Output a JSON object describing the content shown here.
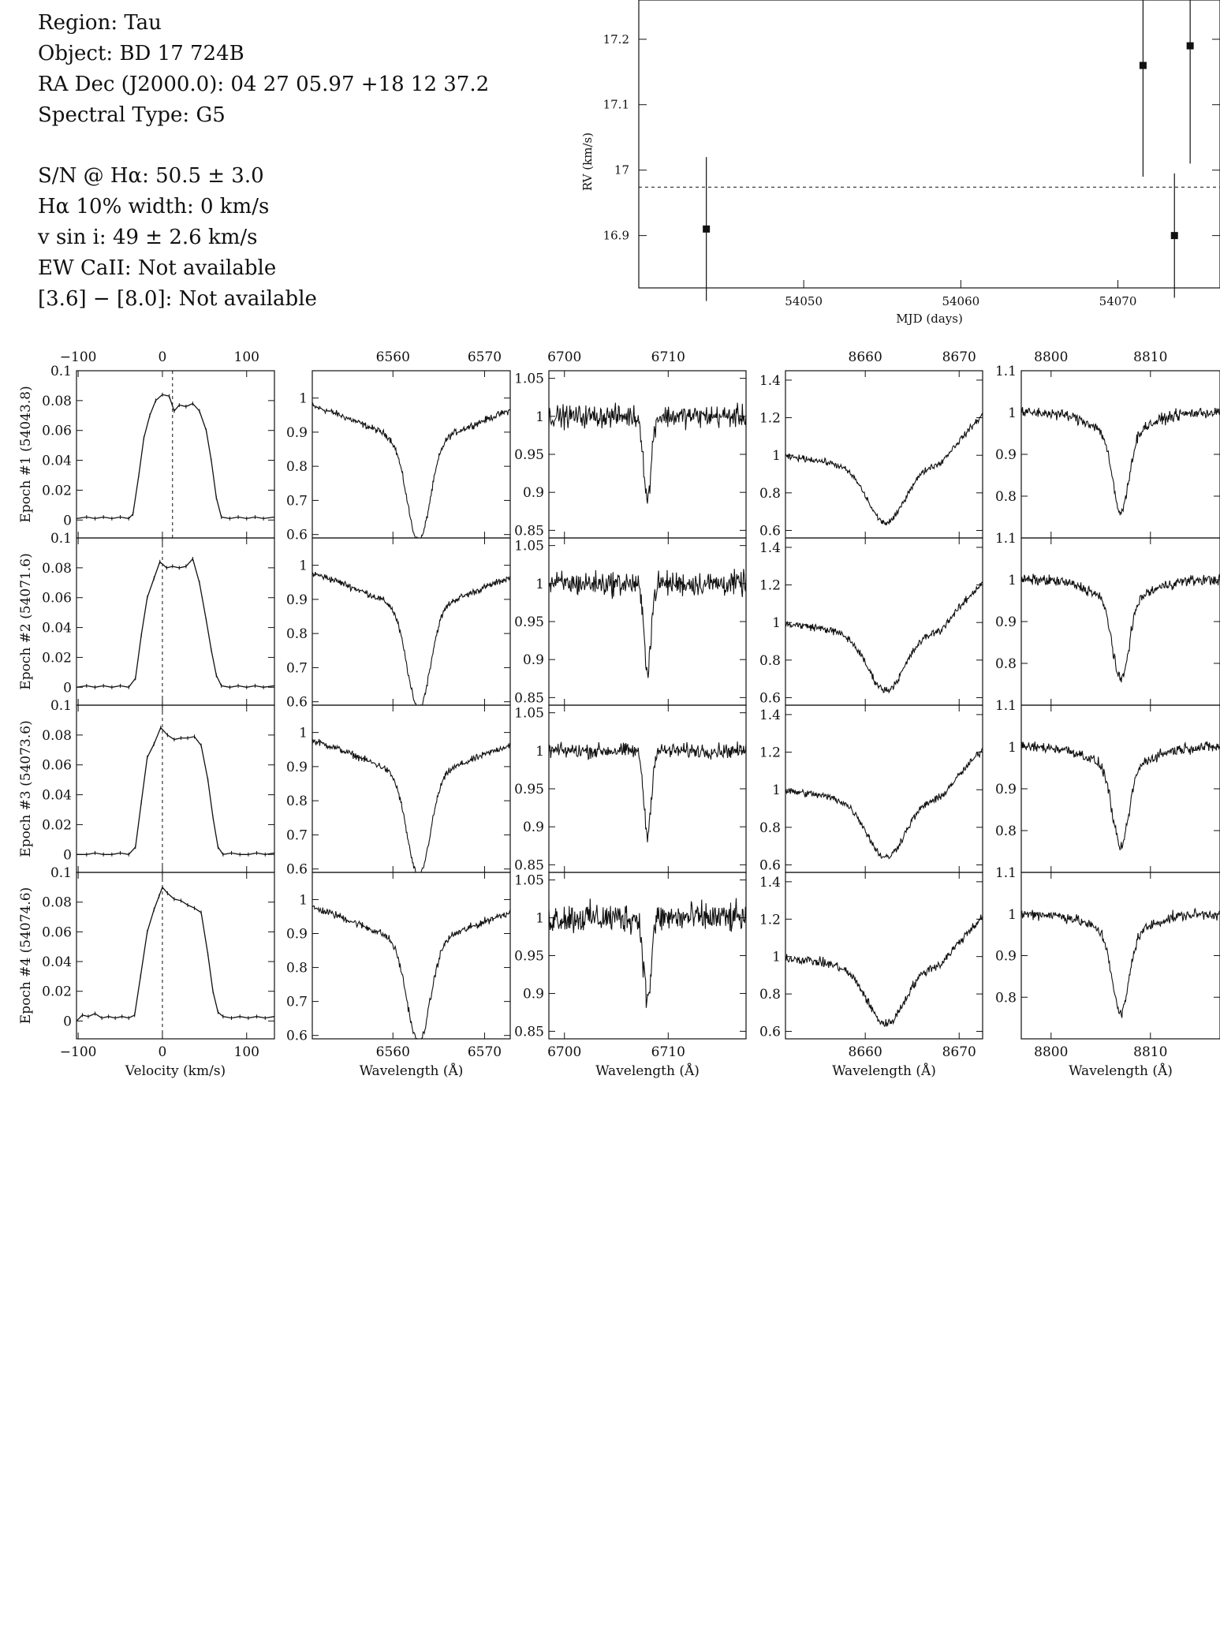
{
  "header": {
    "lines1": [
      "Region: Tau",
      "Object: BD 17 724B",
      "RA Dec (J2000.0): 04 27 05.97 +18 12 37.2",
      "Spectral Type: G5"
    ],
    "lines2": [
      "S/N @ Hα: 50.5 ± 3.0",
      "Hα 10% width: 0 km/s",
      "v sin i: 49 ± 2.6 km/s",
      "EW CaII: Not available",
      "[3.6] − [8.0]: Not available"
    ]
  },
  "chart_data": [
    {
      "type": "scatter",
      "title": "",
      "xlabel": "MJD (days)",
      "ylabel": "RV (km/s)",
      "xlim": [
        54039.5,
        54076.5
      ],
      "ylim": [
        16.82,
        17.26
      ],
      "xticks": [
        54050,
        54060,
        54070
      ],
      "yticks": [
        16.9,
        17,
        17.1,
        17.2
      ],
      "ytick_labels": [
        "16.9",
        "17",
        "17.1",
        "17.2"
      ],
      "mean_line": 16.974,
      "points": [
        {
          "x": 54043.8,
          "y": 16.91,
          "err": 0.11
        },
        {
          "x": 54071.6,
          "y": 17.16,
          "err": 0.17
        },
        {
          "x": 54073.6,
          "y": 16.9,
          "err": 0.095
        },
        {
          "x": 54074.6,
          "y": 17.19,
          "err": 0.18
        }
      ]
    },
    {
      "type": "line",
      "panel_grid": "4 epochs × 5 columns",
      "row_labels": [
        "Epoch #1 (54043.8)",
        "Epoch #2 (54071.6)",
        "Epoch #3 (54073.6)",
        "Epoch #4 (54074.6)"
      ],
      "epoch_rv": [
        16.91,
        17.16,
        16.9,
        17.19
      ],
      "columns": [
        {
          "id": "ccf",
          "xlabel": "Velocity (km/s)",
          "xlim": [
            -102,
            133
          ],
          "xticks": [
            -100,
            0,
            100
          ],
          "xtick_labels": [
            "−100",
            "0",
            "100"
          ],
          "ylims": [
            [
              -0.012,
              0.1
            ],
            [
              -0.012,
              0.1
            ],
            [
              -0.012,
              0.1
            ],
            [
              -0.012,
              0.1
            ]
          ],
          "yticks": [
            [
              0,
              0.02,
              0.04,
              0.06,
              0.08,
              0.1
            ],
            [
              0,
              0.02,
              0.04,
              0.06,
              0.08,
              0.1
            ],
            [
              0,
              0.02,
              0.04,
              0.06,
              0.08,
              0.1
            ],
            [
              0,
              0.02,
              0.04,
              0.06,
              0.08,
              0.1
            ]
          ],
          "dashed_x": [
            12,
            0,
            0,
            0
          ],
          "profiles": [
            [
              [
                -102,
                0.001
              ],
              [
                -90,
                0.002
              ],
              [
                -80,
                0.001
              ],
              [
                -70,
                0.002
              ],
              [
                -60,
                0.001
              ],
              [
                -50,
                0.002
              ],
              [
                -40,
                0.001
              ],
              [
                -35,
                0.004
              ],
              [
                -28,
                0.03
              ],
              [
                -22,
                0.055
              ],
              [
                -15,
                0.07
              ],
              [
                -8,
                0.08
              ],
              [
                0,
                0.084
              ],
              [
                8,
                0.083
              ],
              [
                14,
                0.073
              ],
              [
                20,
                0.077
              ],
              [
                28,
                0.076
              ],
              [
                36,
                0.078
              ],
              [
                44,
                0.073
              ],
              [
                52,
                0.06
              ],
              [
                58,
                0.04
              ],
              [
                64,
                0.015
              ],
              [
                70,
                0.002
              ],
              [
                80,
                0.001
              ],
              [
                90,
                0.002
              ],
              [
                100,
                0.001
              ],
              [
                110,
                0.002
              ],
              [
                120,
                0.001
              ],
              [
                133,
                0.002
              ]
            ],
            [
              [
                -102,
                0.0
              ],
              [
                -90,
                0.001
              ],
              [
                -80,
                0.0
              ],
              [
                -70,
                0.001
              ],
              [
                -60,
                0.0
              ],
              [
                -50,
                0.001
              ],
              [
                -40,
                0.0
              ],
              [
                -32,
                0.006
              ],
              [
                -25,
                0.035
              ],
              [
                -18,
                0.06
              ],
              [
                -10,
                0.073
              ],
              [
                -3,
                0.084
              ],
              [
                5,
                0.08
              ],
              [
                12,
                0.081
              ],
              [
                20,
                0.08
              ],
              [
                28,
                0.081
              ],
              [
                36,
                0.086
              ],
              [
                44,
                0.07
              ],
              [
                52,
                0.045
              ],
              [
                58,
                0.025
              ],
              [
                64,
                0.008
              ],
              [
                70,
                0.001
              ],
              [
                80,
                0.0
              ],
              [
                90,
                0.001
              ],
              [
                100,
                0.0
              ],
              [
                110,
                0.001
              ],
              [
                120,
                0.0
              ],
              [
                133,
                0.001
              ]
            ],
            [
              [
                -102,
                0.0
              ],
              [
                -90,
                0.0
              ],
              [
                -80,
                0.001
              ],
              [
                -70,
                0.0
              ],
              [
                -60,
                0.0
              ],
              [
                -50,
                0.001
              ],
              [
                -40,
                0.0
              ],
              [
                -32,
                0.005
              ],
              [
                -25,
                0.035
              ],
              [
                -18,
                0.065
              ],
              [
                -10,
                0.074
              ],
              [
                -2,
                0.085
              ],
              [
                6,
                0.08
              ],
              [
                14,
                0.077
              ],
              [
                22,
                0.078
              ],
              [
                30,
                0.078
              ],
              [
                38,
                0.079
              ],
              [
                46,
                0.073
              ],
              [
                54,
                0.05
              ],
              [
                60,
                0.025
              ],
              [
                66,
                0.005
              ],
              [
                72,
                0.0
              ],
              [
                82,
                0.001
              ],
              [
                92,
                0.0
              ],
              [
                102,
                0.0
              ],
              [
                112,
                0.001
              ],
              [
                122,
                0.0
              ],
              [
                133,
                0.001
              ]
            ],
            [
              [
                -102,
                0.0
              ],
              [
                -95,
                0.004
              ],
              [
                -88,
                0.003
              ],
              [
                -80,
                0.005
              ],
              [
                -72,
                0.002
              ],
              [
                -64,
                0.003
              ],
              [
                -56,
                0.002
              ],
              [
                -48,
                0.003
              ],
              [
                -40,
                0.002
              ],
              [
                -33,
                0.004
              ],
              [
                -26,
                0.03
              ],
              [
                -18,
                0.06
              ],
              [
                -10,
                0.075
              ],
              [
                -4,
                0.084
              ],
              [
                0,
                0.09
              ],
              [
                6,
                0.086
              ],
              [
                14,
                0.082
              ],
              [
                22,
                0.081
              ],
              [
                30,
                0.078
              ],
              [
                38,
                0.076
              ],
              [
                46,
                0.073
              ],
              [
                54,
                0.045
              ],
              [
                60,
                0.02
              ],
              [
                66,
                0.006
              ],
              [
                72,
                0.003
              ],
              [
                82,
                0.002
              ],
              [
                92,
                0.003
              ],
              [
                102,
                0.002
              ],
              [
                112,
                0.003
              ],
              [
                122,
                0.002
              ],
              [
                133,
                0.003
              ]
            ]
          ]
        },
        {
          "id": "halpha",
          "xlabel": "Wavelength (Å)",
          "xlim": [
            6551.2,
            6572.8
          ],
          "xticks": [
            6560,
            6570
          ],
          "ylims": [
            [
              0.59,
              1.08
            ],
            [
              0.59,
              1.08
            ],
            [
              0.59,
              1.08
            ],
            [
              0.59,
              1.08
            ]
          ],
          "yticks": [
            [
              0.6,
              0.7,
              0.8,
              0.9,
              1
            ],
            [
              0.6,
              0.7,
              0.8,
              0.9,
              1
            ],
            [
              0.6,
              0.7,
              0.8,
              0.9,
              1
            ],
            [
              0.6,
              0.7,
              0.8,
              0.9,
              1
            ]
          ],
          "profile": {
            "type": "gauss",
            "center": 6562.8,
            "depth": 0.3,
            "sigma": 1.25,
            "wing_depth": 0.12,
            "wing_sigma": 6.5
          },
          "noise": [
            0.012,
            0.012,
            0.012,
            0.014
          ]
        },
        {
          "id": "li",
          "xlabel": "Wavelength (Å)",
          "xlim": [
            6698.5,
            6717.5
          ],
          "xticks": [
            6700,
            6710
          ],
          "ylims": [
            [
              0.84,
              1.06
            ],
            [
              0.84,
              1.06
            ],
            [
              0.84,
              1.06
            ],
            [
              0.84,
              1.06
            ]
          ],
          "yticks": [
            [
              0.85,
              0.9,
              0.95,
              1,
              1.05
            ],
            [
              0.85,
              0.9,
              0.95,
              1,
              1.05
            ],
            [
              0.85,
              0.9,
              0.95,
              1,
              1.05
            ],
            [
              0.85,
              0.9,
              0.95,
              1,
              1.05
            ]
          ],
          "profile": {
            "type": "gauss",
            "center": 6708.0,
            "depth": 0.11,
            "sigma": 0.35,
            "wing_depth": 0.0,
            "wing_sigma": 1
          },
          "noise": [
            0.018,
            0.02,
            0.012,
            0.025
          ]
        },
        {
          "id": "ca1",
          "xlabel": "Wavelength (Å)",
          "xlim": [
            8651.5,
            8672.5
          ],
          "xticks": [
            8660,
            8670
          ],
          "ylims": [
            [
              0.56,
              1.45
            ],
            [
              0.56,
              1.45
            ],
            [
              0.56,
              1.45
            ],
            [
              0.56,
              1.45
            ]
          ],
          "yticks": [
            [
              0.6,
              0.8,
              1,
              1.2,
              1.4
            ],
            [
              0.6,
              0.8,
              1,
              1.2,
              1.4
            ],
            [
              0.6,
              0.8,
              1,
              1.2,
              1.4
            ],
            [
              0.6,
              0.8,
              1,
              1.2,
              1.4
            ]
          ],
          "profile": {
            "type": "gauss",
            "center": 8662.2,
            "depth": 0.28,
            "sigma": 1.9,
            "wing_depth": 0.08,
            "wing_sigma": 5
          },
          "noise": [
            0.02,
            0.025,
            0.025,
            0.03
          ]
        },
        {
          "id": "ca2",
          "xlabel": "Wavelength (Å)",
          "xlim": [
            8797.0,
            8817.0
          ],
          "xticks": [
            8800,
            8810
          ],
          "ylims": [
            [
              0.7,
              1.1
            ],
            [
              0.7,
              1.1
            ],
            [
              0.7,
              1.1
            ],
            [
              0.7,
              1.1
            ]
          ],
          "yticks": [
            [
              0.8,
              0.9,
              1,
              1.1
            ],
            [
              0.8,
              0.9,
              1,
              1.1
            ],
            [
              0.8,
              0.9,
              1,
              1.1
            ],
            [
              0.8,
              0.9,
              1,
              1.1
            ]
          ],
          "profile": {
            "type": "gauss",
            "center": 8807.0,
            "depth": 0.19,
            "sigma": 0.8,
            "wing_depth": 0.05,
            "wing_sigma": 2.8
          },
          "noise": [
            0.016,
            0.016,
            0.016,
            0.016
          ]
        }
      ]
    }
  ]
}
